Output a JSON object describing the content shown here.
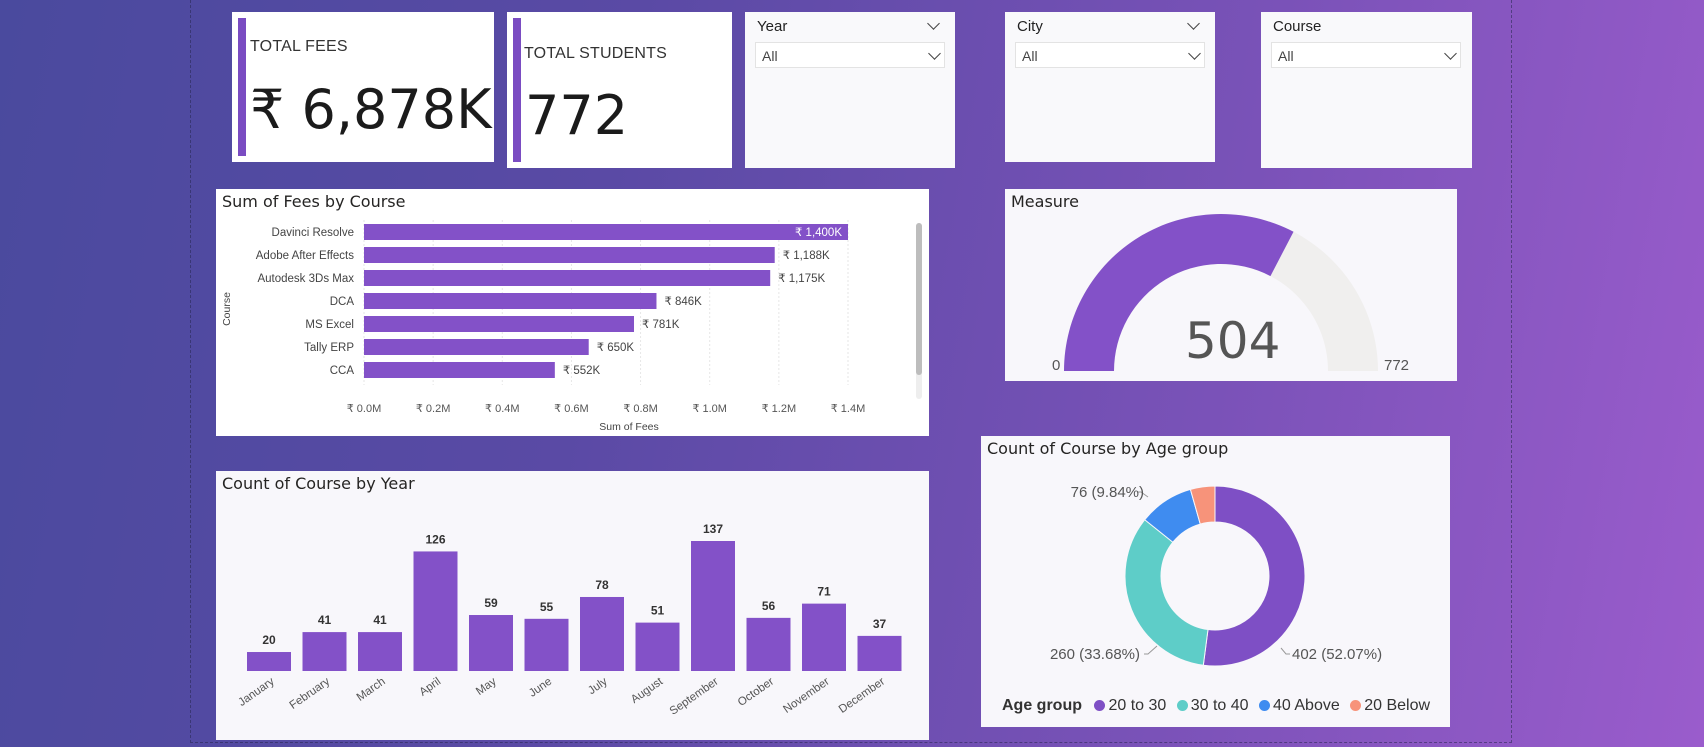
{
  "kpis": {
    "total_fees": {
      "label": "TOTAL FEES",
      "value": "₹ 6,878K"
    },
    "total_students": {
      "label": "TOTAL STUDENTS",
      "value": "772"
    }
  },
  "slicers": [
    {
      "title": "Year",
      "value": "All"
    },
    {
      "title": "City",
      "value": "All"
    },
    {
      "title": "Course",
      "value": "All"
    }
  ],
  "fees_chart": {
    "title": "Sum of Fees by Course",
    "chart_data": {
      "type": "bar",
      "orientation": "horizontal",
      "categories": [
        "Davinci Resolve",
        "Adobe After Effects",
        "Autodesk 3Ds Max",
        "DCA",
        "MS Excel",
        "Tally ERP",
        "CCA"
      ],
      "values": [
        1400,
        1188,
        1175,
        846,
        781,
        650,
        552
      ],
      "data_labels": [
        "₹ 1,400K",
        "₹ 1,188K",
        "₹ 1,175K",
        "₹ 846K",
        "₹ 781K",
        "₹ 650K",
        "₹ 552K"
      ],
      "xlabel": "Sum of Fees",
      "ylabel": "Course",
      "xlim": [
        0,
        1400
      ],
      "xticks": [
        "₹ 0.0M",
        "₹ 0.2M",
        "₹ 0.4M",
        "₹ 0.6M",
        "₹ 0.8M",
        "₹ 1.0M",
        "₹ 1.2M",
        "₹ 1.4M"
      ],
      "grid": true
    }
  },
  "year_chart": {
    "title": "Count of Course by Year",
    "chart_data": {
      "type": "bar",
      "categories": [
        "January",
        "February",
        "March",
        "April",
        "May",
        "June",
        "July",
        "August",
        "September",
        "October",
        "November",
        "December"
      ],
      "values": [
        20,
        41,
        41,
        126,
        59,
        55,
        78,
        51,
        137,
        56,
        71,
        37
      ]
    }
  },
  "gauge": {
    "title": "Measure",
    "value": 504,
    "min": 0,
    "max": 772,
    "value_label": "504",
    "min_label": "0",
    "max_label": "772"
  },
  "age_chart": {
    "title": "Count of Course by Age group",
    "legend_title": "Age group",
    "chart_data": {
      "type": "pie",
      "variant": "donut",
      "categories": [
        "20 to 30",
        "30 to 40",
        "40 Above",
        "20 Below"
      ],
      "values": [
        402,
        260,
        76,
        34
      ],
      "data_labels": [
        "402 (52.07%)",
        "260 (33.68%)",
        "76 (9.84%)",
        ""
      ],
      "colors": [
        "#7e4fc5",
        "#5ecdc8",
        "#3f8cf0",
        "#f7937a"
      ]
    }
  },
  "colors": {
    "accent": "#8351c8",
    "gauge_track": "#f0efee",
    "gauge_fill": "#8351c8"
  }
}
